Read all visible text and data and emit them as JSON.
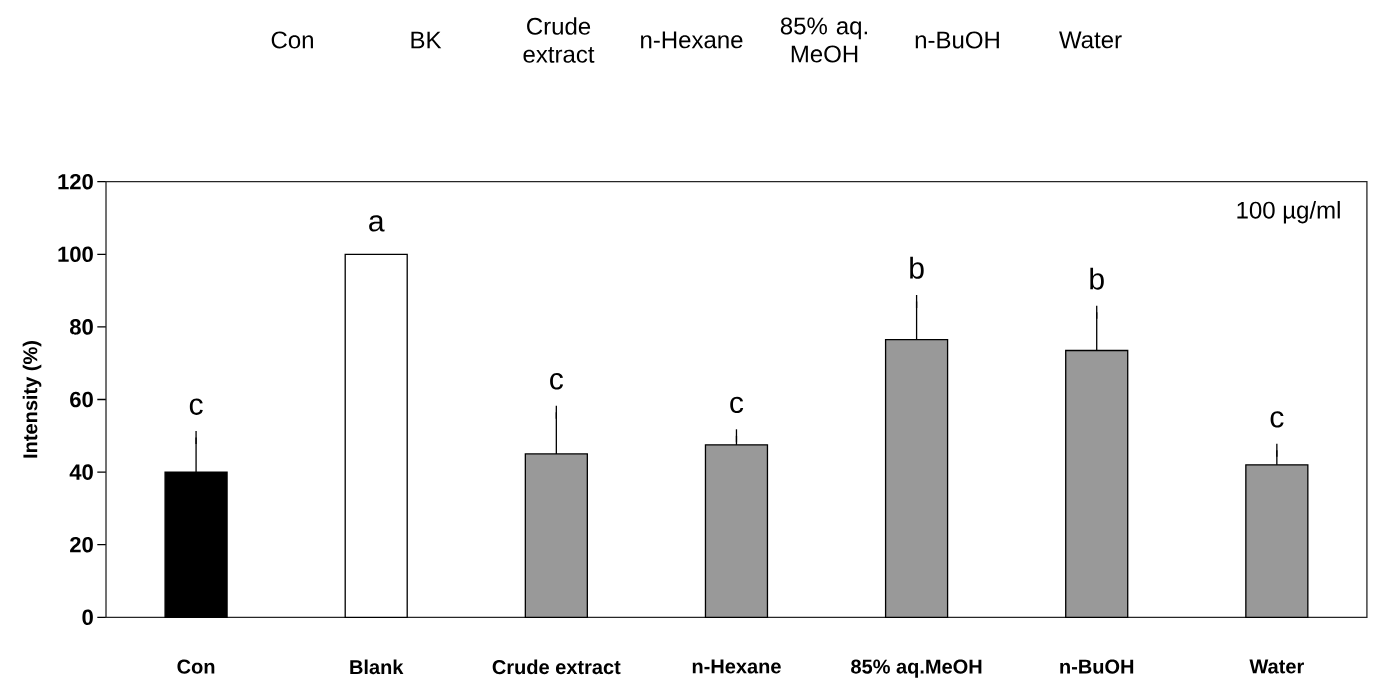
{
  "chart_data": {
    "type": "bar",
    "categories": [
      "Con",
      "Blank",
      "Crude extract",
      "n-Hexane",
      "85% aq.MeOH",
      "n-BuOH",
      "Water"
    ],
    "values": [
      40,
      100,
      45,
      47.5,
      76.5,
      73.5,
      42
    ],
    "colors": [
      "#000000",
      "#ffffff",
      "#999999",
      "#999999",
      "#999999",
      "#999999",
      "#999999"
    ],
    "errors": [
      [
        40,
        49.5
      ],
      null,
      [
        45,
        56.5
      ],
      [
        47.5,
        50
      ],
      [
        76.5,
        87
      ],
      [
        73.5,
        84
      ],
      [
        42,
        46
      ]
    ],
    "ylabel": "Intensity (%)",
    "ylim": [
      0,
      120
    ],
    "yticks": [
      0,
      20,
      40,
      60,
      80,
      100,
      120
    ],
    "annotations": [
      "c",
      "a",
      "c",
      "c",
      "b",
      "b",
      "c",
      "100 µg/ml",
      "Con",
      "BK",
      "Crude extract",
      "n-Hexane",
      "85% aq. MeOH",
      "n-BuOH",
      "Water"
    ]
  }
}
